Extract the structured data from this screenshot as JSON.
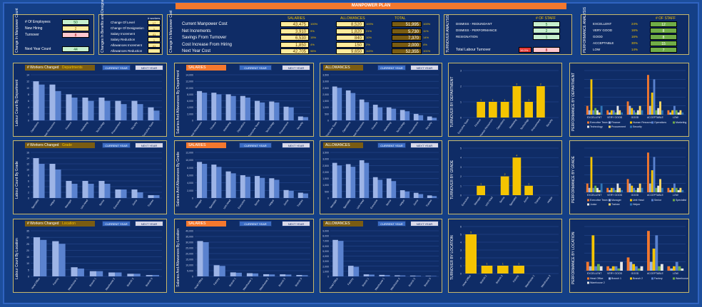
{
  "title": "MANPOWER PLAN",
  "change_box": {
    "side_label": "Change In Manpower Count",
    "rows": [
      {
        "label": "# Of Employees",
        "value": "50",
        "color": "#c6efce"
      },
      {
        "label": "New Hiring",
        "value": "2",
        "color": "#ffeb9c"
      },
      {
        "label": "Turnover",
        "value": "8",
        "color": "#ffc7ce"
      }
    ],
    "next_year_label": "Next Year Count",
    "next_year_value": "44"
  },
  "benefits_box": {
    "side_label": "Changes In Benefits and Designation",
    "col_header": "# workers",
    "rows": [
      {
        "label": "Change Of Level",
        "value": "17"
      },
      {
        "label": "Change Of Designation",
        "value": "1"
      },
      {
        "label": "Salary Increment",
        "value": "41"
      },
      {
        "label": "Salary Reduction",
        "value": "1"
      },
      {
        "label": "Allowances Increment",
        "value": "41"
      },
      {
        "label": "Allowances Reduction",
        "value": ""
      }
    ]
  },
  "cost_box": {
    "side_label": "Change In Manpower Cost",
    "headers": [
      "SALARIES",
      "ALLOWANCES",
      "TOTAL"
    ],
    "rows": [
      {
        "label": "Current Manpower Cost",
        "sal": "43,475",
        "salp": "100%",
        "all": "8,520",
        "allp": "100%",
        "tot": "51,995",
        "totp": "100%"
      },
      {
        "label": "Net Increments",
        "sal": "3,910",
        "salp": "9%",
        "all": "1,820",
        "allp": "21%",
        "tot": "5,730",
        "totp": "11%"
      },
      {
        "label": "Savings From Turnover",
        "sal": "6,530",
        "salp": "15%",
        "all": "840",
        "allp": "10%",
        "tot": "7,370",
        "totp": "14%"
      },
      {
        "label": "Cost Increase From Hiring",
        "sal": "1,850",
        "salp": "4%",
        "all": "150",
        "allp": "2%",
        "tot": "2,000",
        "totp": "4%"
      },
      {
        "label": "Next Year Cost",
        "sal": "42,705",
        "salp": "98%",
        "all": "9,650",
        "allp": "113%",
        "tot": "52,355",
        "totp": "101%"
      }
    ]
  },
  "turnover_box": {
    "side_label": "TURNOVER ANALYSIS",
    "header": "# OF STAFF",
    "rows": [
      {
        "label": "DISMISS - REDUNDANT",
        "value": "5"
      },
      {
        "label": "DISMISS - PERFORMANCE",
        "value": "2"
      },
      {
        "label": "RESIGNATION",
        "value": "1"
      }
    ],
    "total_label": "Total Labour Turnover",
    "total_pct": "16.0%",
    "total_value": "8"
  },
  "performance_box": {
    "side_label": "PERFORMANCE ANALYSIS",
    "header": "# OF STAFF",
    "rows": [
      {
        "label": "EXCELLENT",
        "pct": "24%",
        "value": "12"
      },
      {
        "label": "VERY GOOD",
        "pct": "16%",
        "value": "8"
      },
      {
        "label": "GOOD",
        "pct": "16%",
        "value": "8"
      },
      {
        "label": "ACCEPTABLE",
        "pct": "30%",
        "value": "15"
      },
      {
        "label": "LOW",
        "pct": "14%",
        "value": "7"
      }
    ]
  },
  "buttons": {
    "current": "CURRENT YEAR",
    "next": "NEXT YEAR"
  },
  "rows": [
    {
      "count_title": "# Workers Changed",
      "count_key": "Departments",
      "count_side": "Labour Count By Department",
      "sal_side": "Salaries And Allowances By Department",
      "turn_side": "TURNOVER BY DEPARTMENT",
      "perf_side": "PERFORMANCE BY DEPARTMENT"
    },
    {
      "count_title": "# Workers Changed",
      "count_key": "Grade",
      "count_side": "Labour Count By Grade",
      "sal_side": "Salaries And Allowances By Grade",
      "turn_side": "TURNOVER BY GRADE",
      "perf_side": "PERFORMANCE BY GRADE"
    },
    {
      "count_title": "# Workers Changed",
      "count_key": "Location",
      "count_side": "Labour Count By Location",
      "sal_side": "Salaries And Allowances By Location",
      "turn_side": "TURNOVER BY LOCATION",
      "perf_side": "PERFORMANCE BY LOCATION"
    }
  ],
  "chart_data": [
    {
      "id": "count-dept",
      "type": "bar",
      "categories": [
        "Operations",
        "Human Resources",
        "Finance",
        "Marketing",
        "Technology",
        "Procurement",
        "Security",
        "Executive Team"
      ],
      "series": [
        {
          "values": [
            12,
            11,
            8,
            7,
            7,
            6,
            6,
            4
          ]
        },
        {
          "values": [
            11,
            9,
            7,
            6,
            6,
            5,
            5,
            3
          ]
        }
      ],
      "ylim": [
        0,
        14
      ],
      "ticks": [
        "0",
        "2",
        "4",
        "6",
        "8",
        "10",
        "12",
        "14"
      ]
    },
    {
      "id": "sal-dept",
      "type": "bar",
      "title": "SALARIES",
      "categories": [
        "Human Resources",
        "Finance",
        "Marketing",
        "Operations",
        "Executive Team",
        "Technology",
        "Procurement",
        "Security"
      ],
      "series": [
        {
          "values": [
            9000,
            8500,
            8000,
            7500,
            6000,
            5800,
            4200,
            1200
          ]
        },
        {
          "values": [
            8500,
            8000,
            7500,
            7000,
            5500,
            5500,
            4000,
            1000
          ]
        }
      ],
      "ylim": [
        0,
        14000
      ],
      "ticks": [
        "0",
        "2,000",
        "4,000",
        "6,000",
        "8,000",
        "10,000",
        "12,000",
        "14,000"
      ]
    },
    {
      "id": "all-dept",
      "type": "bar",
      "title": "ALLOWANCES",
      "categories": [
        "Executive Team",
        "Operations",
        "Human Resources",
        "Finance",
        "Marketing",
        "Technology",
        "Procurement",
        "Security"
      ],
      "series": [
        {
          "values": [
            2600,
            2300,
            1600,
            1200,
            1000,
            800,
            500,
            300
          ]
        },
        {
          "values": [
            2500,
            2100,
            1400,
            1000,
            900,
            700,
            400,
            200
          ]
        }
      ],
      "ylim": [
        0,
        3500
      ],
      "ticks": [
        "0",
        "500",
        "1,000",
        "1,500",
        "2,000",
        "2,500",
        "3,000",
        "3,500"
      ]
    },
    {
      "id": "turn-dept",
      "type": "bar",
      "categories": [
        "Executive Team",
        "Finance",
        "Human Resources",
        "Operations",
        "Marketing",
        "Technology",
        "Procurement",
        "Security"
      ],
      "series": [
        {
          "values": [
            0,
            1,
            1,
            1,
            2,
            1,
            2,
            0
          ]
        }
      ],
      "labels": [
        "",
        "1",
        "1",
        "1",
        "2",
        "1",
        "2",
        ""
      ],
      "ylim": [
        0,
        3
      ],
      "ticks": [
        "0",
        "1",
        "2",
        "3"
      ]
    },
    {
      "id": "count-grade",
      "type": "bar",
      "categories": [
        "Specialist",
        "Helper",
        "Manager",
        "Unit Head",
        "Senior",
        "Executive",
        "Junior",
        "Trainee"
      ],
      "series": [
        {
          "values": [
            14,
            12,
            6,
            6,
            6,
            3,
            3,
            1
          ]
        },
        {
          "values": [
            12,
            10,
            5,
            5,
            5,
            3,
            2,
            1
          ]
        }
      ],
      "ylim": [
        0,
        16
      ],
      "ticks": [
        "0",
        "2",
        "4",
        "6",
        "8",
        "10",
        "12",
        "14",
        "16"
      ]
    },
    {
      "id": "sal-grade",
      "type": "bar",
      "categories": [
        "Manager",
        "Specialist",
        "Unit Head",
        "Executive",
        "Senior",
        "Helper",
        "Junior",
        "Trainee"
      ],
      "series": [
        {
          "values": [
            9500,
            8800,
            7000,
            6000,
            5800,
            5200,
            2100,
            1400
          ]
        },
        {
          "values": [
            9000,
            8200,
            6500,
            5600,
            5300,
            4800,
            1900,
            1200
          ]
        }
      ],
      "ylim": [
        0,
        12000
      ],
      "ticks": [
        "0",
        "2,000",
        "4,000",
        "6,000",
        "8,000",
        "10,000",
        "12,000"
      ]
    },
    {
      "id": "all-grade",
      "type": "bar",
      "categories": [
        "Manager",
        "Specialist",
        "Unit Head",
        "Executive",
        "Senior",
        "Helper",
        "Junior",
        "Trainee"
      ],
      "series": [
        {
          "values": [
            2700,
            2600,
            2900,
            1600,
            1500,
            600,
            400,
            200
          ]
        },
        {
          "values": [
            2500,
            2400,
            2700,
            1400,
            1300,
            500,
            300,
            150
          ]
        }
      ],
      "ylim": [
        0,
        3500
      ],
      "ticks": [
        "0",
        "500",
        "1,000",
        "1,500",
        "2,000",
        "2,500",
        "3,000",
        "3,500"
      ]
    },
    {
      "id": "turn-grade",
      "type": "bar",
      "categories": [
        "Executive",
        "Manager",
        "Unit Head",
        "Senior",
        "Specialist",
        "Junior",
        "Trainee",
        "Helper"
      ],
      "series": [
        {
          "values": [
            0,
            1,
            0,
            2,
            4,
            1,
            0,
            0
          ]
        }
      ],
      "labels": [
        "",
        "1",
        "",
        "2",
        "4",
        "1",
        "",
        ""
      ],
      "ylim": [
        0,
        5
      ],
      "ticks": [
        "0",
        "1",
        "2",
        "3",
        "4",
        "5"
      ]
    },
    {
      "id": "count-loc",
      "type": "bar",
      "categories": [
        "Head Office",
        "Factory",
        "Warehouse 1",
        "Branch 1",
        "Warehouse 2",
        "Branch 2",
        "Branch 3"
      ],
      "series": [
        {
          "values": [
            30,
            27,
            7,
            4,
            3,
            2,
            1
          ]
        },
        {
          "values": [
            28,
            25,
            6,
            4,
            3,
            2,
            1
          ]
        }
      ],
      "ylim": [
        0,
        35
      ],
      "ticks": [
        "0",
        "5",
        "10",
        "15",
        "20",
        "25",
        "30",
        "35"
      ]
    },
    {
      "id": "sal-loc",
      "type": "bar",
      "categories": [
        "Head Office",
        "Factory",
        "Branch 1",
        "Warehouse 1",
        "Warehouse 2",
        "Branch 2",
        "Branch 3"
      ],
      "series": [
        {
          "values": [
            31000,
            9800,
            3500,
            2800,
            1900,
            1800,
            1200
          ]
        },
        {
          "values": [
            30000,
            9200,
            3200,
            2600,
            1700,
            1600,
            1000
          ]
        }
      ],
      "ylim": [
        0,
        40000
      ],
      "ticks": [
        "0",
        "5,000",
        "10,000",
        "15,000",
        "20,000",
        "25,000",
        "30,000",
        "35,000",
        "40,000"
      ]
    },
    {
      "id": "all-loc",
      "type": "bar",
      "categories": [
        "Head Office",
        "Factory",
        "Branch 1",
        "Warehouse 1",
        "Warehouse 2",
        "Branch 2",
        "Branch 3"
      ],
      "series": [
        {
          "values": [
            7200,
            2100,
            400,
            300,
            200,
            150,
            100
          ]
        },
        {
          "values": [
            7000,
            1900,
            350,
            250,
            180,
            120,
            80
          ]
        }
      ],
      "ylim": [
        0,
        9000
      ],
      "ticks": [
        "0",
        "1,000",
        "2,000",
        "3,000",
        "4,000",
        "5,000",
        "6,000",
        "7,000",
        "8,000",
        "9,000"
      ]
    },
    {
      "id": "turn-loc",
      "type": "bar",
      "categories": [
        "Head Office",
        "Branch 1",
        "Branch 2",
        "Factory",
        "Warehouse 1",
        "Warehouse 2"
      ],
      "series": [
        {
          "values": [
            5,
            1,
            1,
            1,
            0,
            0
          ]
        }
      ],
      "labels": [
        "5",
        "1",
        "1",
        "1",
        "",
        ""
      ],
      "ylim": [
        0,
        6
      ],
      "ticks": [
        "0",
        "1",
        "2",
        "3",
        "4",
        "5",
        "6"
      ]
    },
    {
      "id": "perf-dept",
      "type": "bar",
      "categories": [
        "EXCELLENT",
        "VERY GOOD",
        "GOOD",
        "ACCEPTABLE",
        "LOW"
      ],
      "legend": [
        "Executive Team",
        "Finance",
        "Human Resources",
        "Operations",
        "Marketing",
        "Technology",
        "Procurement",
        "Security"
      ]
    },
    {
      "id": "perf-grade",
      "type": "bar",
      "categories": [
        "EXCELLENT",
        "VERY GOOD",
        "GOOD",
        "ACCEPTABLE",
        "LOW"
      ],
      "legend": [
        "Executive Team",
        "Manager",
        "Unit Head",
        "Senior",
        "Specialist",
        "Junior",
        "Trainee",
        "Helper"
      ]
    },
    {
      "id": "perf-loc",
      "type": "bar",
      "categories": [
        "EXCELLENT",
        "VERY GOOD",
        "GOOD",
        "ACCEPTABLE",
        "LOW"
      ],
      "legend": [
        "Head Office",
        "Branch 1",
        "Branch 2",
        "Factory",
        "Warehouse 1",
        "Warehouse 2"
      ]
    }
  ],
  "colors": {
    "bar_a": "#9db4e6",
    "bar_b": "#5a82cf",
    "turn_bar": "#f5c400",
    "header_orange": "#f4782e",
    "header_blue": "#3b6cc4",
    "header_brown": "#7a5c12",
    "header_gold": "#c8a000"
  }
}
